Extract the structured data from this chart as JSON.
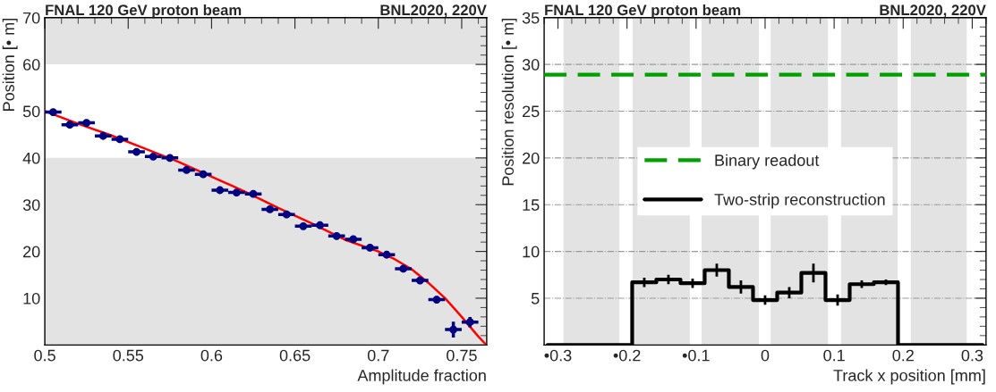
{
  "chart_data": [
    {
      "type": "scatter",
      "title": "FNAL 120 GeV proton beam",
      "annotations": [
        "BNL2020, 220V"
      ],
      "xlabel": "Amplitude fraction",
      "ylabel": "Position [• m]",
      "xlim": [
        0.5,
        0.765
      ],
      "xticks": [
        0.5,
        0.55,
        0.6,
        0.65,
        0.7,
        0.75
      ],
      "ylim": [
        0,
        70
      ],
      "yticks": [
        10,
        20,
        30,
        40,
        50,
        60,
        70
      ],
      "grid": false,
      "bands": [
        {
          "axis": "y",
          "from": 0,
          "to": 40,
          "color": "#e3e3e3"
        },
        {
          "axis": "y",
          "from": 60,
          "to": 70,
          "color": "#e3e3e3"
        }
      ],
      "series": [
        {
          "color": "#000080",
          "marker": "circle",
          "x": [
            0.505,
            0.515,
            0.525,
            0.535,
            0.545,
            0.555,
            0.565,
            0.575,
            0.585,
            0.595,
            0.605,
            0.615,
            0.625,
            0.635,
            0.645,
            0.655,
            0.665,
            0.675,
            0.685,
            0.695,
            0.705,
            0.715,
            0.725,
            0.735,
            0.745,
            0.755
          ],
          "values": [
            49.8,
            47.1,
            47.5,
            44.7,
            44.0,
            41.3,
            40.3,
            40.0,
            37.4,
            36.5,
            33.1,
            32.6,
            32.3,
            29.0,
            27.9,
            25.4,
            25.6,
            23.3,
            22.6,
            20.8,
            19.3,
            16.3,
            13.8,
            9.7,
            3.3,
            4.9
          ],
          "errors": [
            0.3,
            0.4,
            0.4,
            0.4,
            0.3,
            0.4,
            0.4,
            0.4,
            0.3,
            0.4,
            0.4,
            0.4,
            0.4,
            0.4,
            0.4,
            0.3,
            0.3,
            0.4,
            0.4,
            0.4,
            0.3,
            0.4,
            0.4,
            0.7,
            1.7,
            1.1
          ],
          "xerrors": [
            0.005,
            0.005,
            0.005,
            0.005,
            0.005,
            0.005,
            0.005,
            0.005,
            0.005,
            0.005,
            0.005,
            0.005,
            0.005,
            0.005,
            0.005,
            0.005,
            0.005,
            0.005,
            0.005,
            0.005,
            0.005,
            0.005,
            0.005,
            0.005,
            0.005,
            0.005
          ]
        },
        {
          "type": "line",
          "color": "#ff0000",
          "line_style": "solid",
          "x": [
            0.5,
            0.52,
            0.54,
            0.56,
            0.58,
            0.6,
            0.62,
            0.64,
            0.66,
            0.68,
            0.7,
            0.71,
            0.72,
            0.73,
            0.74,
            0.75,
            0.76,
            0.764
          ],
          "values": [
            50.0,
            47.3,
            44.8,
            42.0,
            39.2,
            36.0,
            32.8,
            29.3,
            26.0,
            22.5,
            20.0,
            18.3,
            16.2,
            13.3,
            10.0,
            6.0,
            1.8,
            0.3
          ]
        }
      ]
    },
    {
      "type": "step",
      "title": "FNAL 120 GeV proton beam",
      "annotations": [
        "BNL2020, 220V"
      ],
      "xlabel": "Track x position [mm]",
      "ylabel": "Position resolution [• m]",
      "xlim": [
        -0.32,
        0.32
      ],
      "xticks": [
        {
          "value": -0.3,
          "label": "•0.3"
        },
        {
          "value": -0.2,
          "label": "•0.2"
        },
        {
          "value": -0.1,
          "label": "•0.1"
        },
        0,
        0.1,
        0.2,
        0.3
      ],
      "ylim": [
        0,
        35
      ],
      "yticks": [
        5,
        10,
        15,
        20,
        25,
        30,
        35
      ],
      "grid": "y",
      "legend": "center",
      "bands": [
        {
          "axis": "x",
          "from": -0.292,
          "to": -0.211,
          "color": "#e3e3e3"
        },
        {
          "axis": "x",
          "from": -0.192,
          "to": -0.109,
          "color": "#e3e3e3"
        },
        {
          "axis": "x",
          "from": -0.092,
          "to": -0.009,
          "color": "#e3e3e3"
        },
        {
          "axis": "x",
          "from": 0.008,
          "to": 0.091,
          "color": "#e3e3e3"
        },
        {
          "axis": "x",
          "from": 0.11,
          "to": 0.192,
          "color": "#e3e3e3"
        },
        {
          "axis": "x",
          "from": 0.211,
          "to": 0.292,
          "color": "#e3e3e3"
        }
      ],
      "series": [
        {
          "type": "line",
          "name": "Binary readout",
          "color": "#00a000",
          "line_style": "dashed",
          "x": [
            -0.32,
            0.32
          ],
          "values": [
            28.9,
            28.9
          ]
        },
        {
          "name": "Two-strip reconstruction",
          "color": "#000000",
          "line_style": "solid",
          "x": [
            -0.315,
            -0.28,
            -0.245,
            -0.21,
            -0.175,
            -0.14,
            -0.105,
            -0.07,
            -0.035,
            0,
            0.035,
            0.07,
            0.105,
            0.14,
            0.175,
            0.21,
            0.245,
            0.28,
            0.315
          ],
          "values": [
            0,
            0,
            0,
            0,
            6.7,
            7.0,
            6.6,
            8.0,
            6.2,
            4.8,
            5.6,
            7.7,
            4.8,
            6.5,
            6.7,
            0,
            0,
            0,
            0
          ],
          "errors": [
            null,
            null,
            null,
            null,
            0.5,
            0.5,
            0.5,
            0.7,
            0.7,
            0.5,
            0.6,
            1.0,
            0.6,
            0.4,
            0.3,
            null,
            null,
            null,
            null
          ]
        }
      ]
    }
  ]
}
